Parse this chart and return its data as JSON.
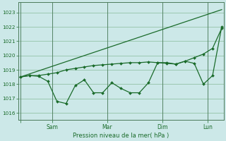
{
  "bg_color": "#cce8e8",
  "grid_color": "#88bb99",
  "line_color": "#1a6b2a",
  "xlabel": "Pression niveau de la mer( hPa )",
  "ylim": [
    1015.5,
    1023.7
  ],
  "yticks": [
    1016,
    1017,
    1018,
    1019,
    1020,
    1021,
    1022,
    1023
  ],
  "xlim": [
    -0.2,
    22.2
  ],
  "xtick_positions": [
    0,
    3.5,
    9.5,
    15.5,
    20.5
  ],
  "xtick_labels": [
    "",
    "Sam",
    "Mar",
    "Dim",
    "Lun"
  ],
  "vline_positions": [
    0,
    3.5,
    9.5,
    15.5,
    20.5
  ],
  "series_trend": {
    "x": [
      0,
      22
    ],
    "y": [
      1018.5,
      1023.2
    ]
  },
  "series_smooth": {
    "x": [
      0,
      1,
      2,
      3,
      4,
      5,
      6,
      7,
      8,
      9,
      10,
      11,
      12,
      13,
      14,
      15,
      16,
      17,
      18,
      19,
      20,
      21,
      22
    ],
    "y": [
      1018.5,
      1018.6,
      1018.6,
      1018.7,
      1018.8,
      1019.0,
      1019.1,
      1019.2,
      1019.3,
      1019.35,
      1019.4,
      1019.45,
      1019.5,
      1019.5,
      1019.55,
      1019.5,
      1019.45,
      1019.4,
      1019.6,
      1019.85,
      1020.1,
      1020.5,
      1021.9
    ]
  },
  "series_zigzag": {
    "x": [
      0,
      1,
      2,
      3,
      4,
      5,
      6,
      7,
      8,
      9,
      10,
      11,
      12,
      13,
      14,
      15,
      16,
      17,
      18,
      19,
      20,
      21,
      22
    ],
    "y": [
      1018.5,
      1018.6,
      1018.55,
      1018.2,
      1016.8,
      1016.65,
      1017.9,
      1018.3,
      1017.4,
      1017.4,
      1018.1,
      1017.7,
      1017.4,
      1017.4,
      1018.1,
      1019.5,
      1019.5,
      1019.4,
      1019.6,
      1019.45,
      1018.0,
      1018.6,
      1022.0
    ]
  }
}
